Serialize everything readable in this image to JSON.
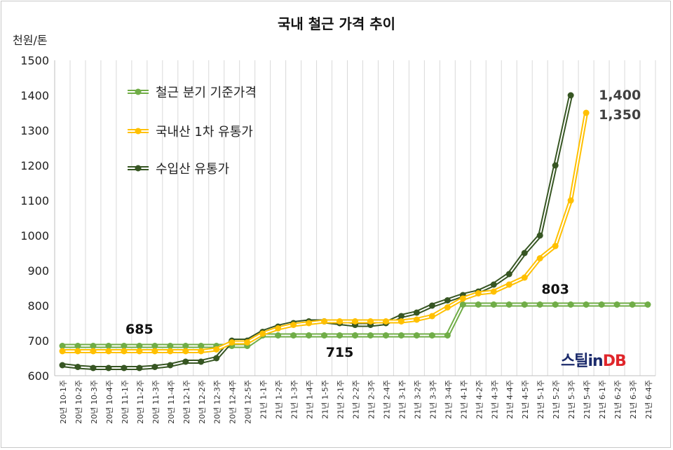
{
  "chart_data": {
    "type": "line",
    "title": "국내 철근 가격 추이",
    "ylabel": "천원/톤",
    "xlabel": "",
    "ylim": [
      600,
      1500
    ],
    "yticks": [
      600,
      700,
      800,
      900,
      1000,
      1100,
      1200,
      1300,
      1400,
      1500
    ],
    "grid": "vertical",
    "legend_position": "top-left",
    "categories": [
      "20년 10-1주",
      "20년 10-2주",
      "20년 10-3주",
      "20년 10-4주",
      "20년 11-1주",
      "20년 11-2주",
      "20년 11-3주",
      "20년 11-4주",
      "20년 12-1주",
      "20년 12-2주",
      "20년 12-3주",
      "20년 12-4주",
      "20년 12-5주",
      "21년 1-1주",
      "21년 1-2주",
      "21년 1-3주",
      "21년 1-4주",
      "21년 1-5주",
      "21년 2-1주",
      "21년 2-2주",
      "21년 2-3주",
      "21년 2-4주",
      "21년 3-1주",
      "21년 3-2주",
      "21년 3-3주",
      "21년 3-4주",
      "21년 4-1주",
      "21년 4-2주",
      "21년 4-3주",
      "21년 4-4주",
      "21년 4-5주",
      "21년 5-1주",
      "21년 5-2주",
      "21년 5-3주",
      "21년 5-4주",
      "21년 6-1주",
      "21년 6-2주",
      "21년 6-3주",
      "21년 6-4주"
    ],
    "series": [
      {
        "name": "철근 분기 기준가격",
        "color": "#70ad47",
        "values": [
          685,
          685,
          685,
          685,
          685,
          685,
          685,
          685,
          685,
          685,
          685,
          685,
          685,
          715,
          715,
          715,
          715,
          715,
          715,
          715,
          715,
          715,
          715,
          715,
          715,
          715,
          803,
          803,
          803,
          803,
          803,
          803,
          803,
          803,
          803,
          803,
          803,
          803,
          803
        ]
      },
      {
        "name": "국내산 1차 유통가",
        "color": "#ffc000",
        "values": [
          670,
          670,
          670,
          670,
          670,
          670,
          670,
          670,
          670,
          670,
          675,
          695,
          695,
          720,
          735,
          745,
          750,
          755,
          755,
          755,
          755,
          755,
          755,
          760,
          770,
          795,
          820,
          835,
          840,
          860,
          880,
          935,
          970,
          1100,
          1350,
          null,
          null,
          null,
          null
        ]
      },
      {
        "name": "수입산 유통가",
        "color": "#375623",
        "values": [
          630,
          625,
          622,
          622,
          622,
          622,
          625,
          630,
          640,
          640,
          650,
          700,
          700,
          725,
          740,
          750,
          755,
          755,
          750,
          745,
          745,
          750,
          770,
          780,
          800,
          815,
          830,
          840,
          860,
          890,
          950,
          1000,
          1200,
          1400,
          null,
          null,
          null,
          null,
          null
        ]
      }
    ],
    "annotations": [
      {
        "text": "685",
        "x_index": 5,
        "y": 685
      },
      {
        "text": "715",
        "x_index": 18,
        "y": 715
      },
      {
        "text": "803",
        "x_index": 32,
        "y": 803
      },
      {
        "text": "1,400",
        "x_index": 34,
        "y": 1400
      },
      {
        "text": "1,350",
        "x_index": 34,
        "y": 1350
      }
    ]
  },
  "brand": {
    "part1": "스틸",
    "part2": "in",
    "part3": "DB"
  }
}
